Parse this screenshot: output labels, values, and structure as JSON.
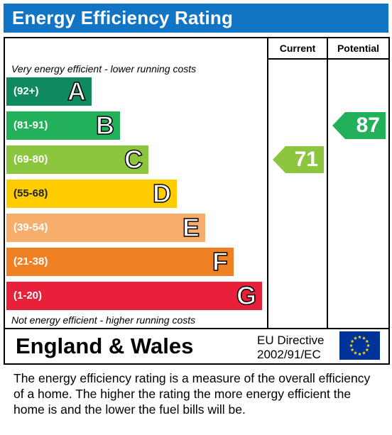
{
  "header": {
    "title": "Energy Efficiency Rating",
    "background": "#1174c4"
  },
  "columns": {
    "current_label": "Current",
    "potential_label": "Potential"
  },
  "notes": {
    "top": "Very energy efficient - lower running costs",
    "bottom": "Not energy efficient - higher running costs"
  },
  "chart_data": {
    "type": "bar",
    "categories": [
      "A",
      "B",
      "C",
      "D",
      "E",
      "F",
      "G"
    ],
    "bands": [
      {
        "letter": "A",
        "range": "(92+)",
        "color": "#0f8a5f"
      },
      {
        "letter": "B",
        "range": "(81-91)",
        "color": "#22b05a"
      },
      {
        "letter": "C",
        "range": "(69-80)",
        "color": "#8cc63f"
      },
      {
        "letter": "D",
        "range": "(55-68)",
        "color": "#ffcc00"
      },
      {
        "letter": "E",
        "range": "(39-54)",
        "color": "#f7ad6b"
      },
      {
        "letter": "F",
        "range": "(21-38)",
        "color": "#f08024"
      },
      {
        "letter": "G",
        "range": "(1-20)",
        "color": "#e8203a"
      }
    ],
    "current": {
      "value": 71,
      "band": "C",
      "color": "#8cc63f"
    },
    "potential": {
      "value": 87,
      "band": "B",
      "color": "#22b05a"
    }
  },
  "footer": {
    "country": "England & Wales",
    "directive_line1": "EU Directive",
    "directive_line2": "2002/91/EC"
  },
  "description": "The energy efficiency rating is a measure of the overall efficiency of a home.  The higher the rating the more energy efficient the home is and the lower the fuel bills will be."
}
